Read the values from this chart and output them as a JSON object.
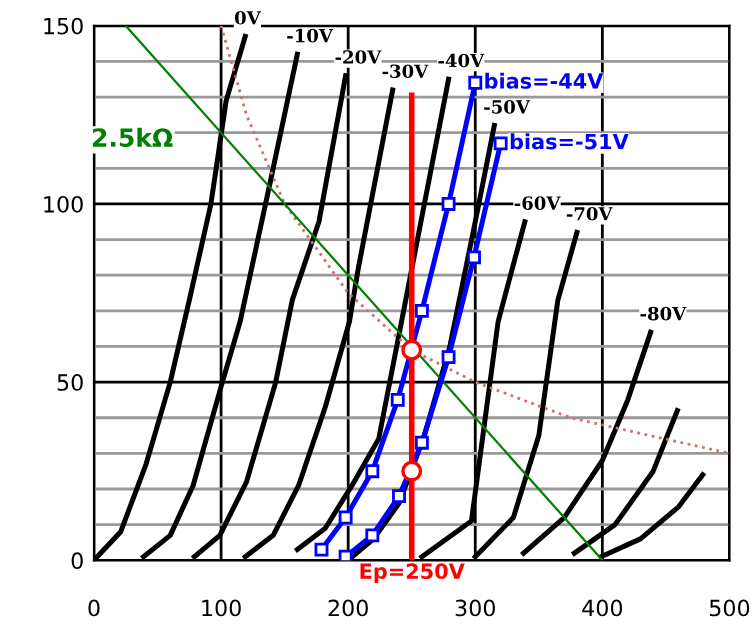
{
  "chart_data": {
    "type": "line",
    "xlim": [
      0,
      500
    ],
    "ylim": [
      0,
      150
    ],
    "xticks": [
      0,
      100,
      200,
      300,
      400,
      500
    ],
    "yticks": [
      0,
      {
        "value": 10,
        "label": null
      },
      {
        "value": 20,
        "label": null
      },
      {
        "value": 30,
        "label": null
      },
      {
        "value": 40,
        "label": null
      },
      50,
      {
        "value": 60,
        "label": null
      },
      {
        "value": 70,
        "label": null
      },
      {
        "value": 80,
        "label": null
      },
      {
        "value": 90,
        "label": null
      },
      100,
      {
        "value": 110,
        "label": null
      },
      {
        "value": 120,
        "label": null
      },
      {
        "value": 130,
        "label": null
      },
      {
        "value": 140,
        "label": null
      },
      150
    ],
    "grid": true,
    "legend": false,
    "ref_lines": [
      {
        "axis": "x",
        "value": 250,
        "label": "Ep=250V",
        "color": "#ff0000"
      }
    ],
    "annotations": [
      {
        "text": "2.5kΩ",
        "x": 30,
        "y": 118
      }
    ],
    "series": [
      {
        "name": "0V",
        "color": "#000000",
        "x": [
          0,
          21,
          41,
          60,
          75,
          92,
          104,
          119
        ],
        "values": [
          0,
          8,
          27,
          50,
          73,
          100,
          129,
          147
        ]
      },
      {
        "name": "-10V",
        "color": "#000000",
        "x": [
          39,
          60,
          78,
          101,
          115,
          138,
          160
        ],
        "values": [
          1,
          7,
          21,
          50,
          67,
          105,
          142
        ]
      },
      {
        "name": "-20V",
        "color": "#000000",
        "x": [
          79,
          99,
          120,
          143,
          156,
          177,
          198
        ],
        "values": [
          1,
          7,
          22,
          50,
          73,
          95,
          136
        ]
      },
      {
        "name": "-30V",
        "color": "#000000",
        "x": [
          119,
          141,
          161,
          182,
          201,
          208,
          235
        ],
        "values": [
          1,
          7,
          21,
          43,
          67,
          82,
          132
        ]
      },
      {
        "name": "-40V",
        "color": "#000000",
        "x": [
          160,
          182,
          203,
          224,
          242,
          279
        ],
        "values": [
          3,
          9,
          21,
          34,
          67,
          135
        ]
      },
      {
        "name": "-50V",
        "color": "#000000",
        "x": [
          200,
          220,
          240,
          260,
          280,
          300,
          315
        ],
        "values": [
          0,
          6,
          16,
          35,
          60,
          95,
          122
        ]
      },
      {
        "name": "-60V",
        "color": "#000000",
        "x": [
          258,
          297,
          318,
          339
        ],
        "values": [
          1,
          11,
          67,
          95
        ]
      },
      {
        "name": "-70V",
        "color": "#000000",
        "x": [
          300,
          330,
          350,
          365,
          380
        ],
        "values": [
          1,
          12,
          35,
          73,
          92
        ]
      },
      {
        "name": "-80V",
        "color": "#000000",
        "x": [
          338,
          370,
          400,
          420,
          438
        ],
        "values": [
          2,
          12,
          28,
          45,
          64
        ]
      },
      {
        "color": "#000000",
        "x": [
          378,
          410,
          440,
          459
        ],
        "values": [
          2,
          10,
          25,
          42
        ]
      },
      {
        "color": "#000000",
        "x": [
          399,
          430,
          460,
          479
        ],
        "values": [
          1,
          6,
          15,
          24
        ]
      },
      {
        "color": "#d07070",
        "line_style": "dotted",
        "x": [
          100,
          120,
          150,
          200,
          250,
          300,
          375,
          500
        ],
        "values": [
          150,
          125,
          100,
          75,
          59,
          50,
          40,
          30
        ]
      },
      {
        "color": "#008000",
        "x": [
          25,
          400
        ],
        "values": [
          150,
          0
        ]
      },
      {
        "name": "bias=-44V",
        "color": "#0000ff",
        "marker": "square",
        "x": [
          179,
          198,
          219,
          239,
          258,
          279,
          300
        ],
        "values": [
          3,
          12,
          25,
          45,
          70,
          100,
          134
        ]
      },
      {
        "name": "bias=-51V",
        "color": "#0000ff",
        "marker": "square",
        "x": [
          198,
          219,
          240,
          258,
          279,
          299,
          320
        ],
        "values": [
          1,
          7,
          18,
          33,
          57,
          85,
          117
        ]
      },
      {
        "type": "scatter",
        "color": "#ff0000",
        "marker": "circle",
        "x": [
          250,
          250
        ],
        "values": [
          59,
          25
        ]
      }
    ]
  }
}
